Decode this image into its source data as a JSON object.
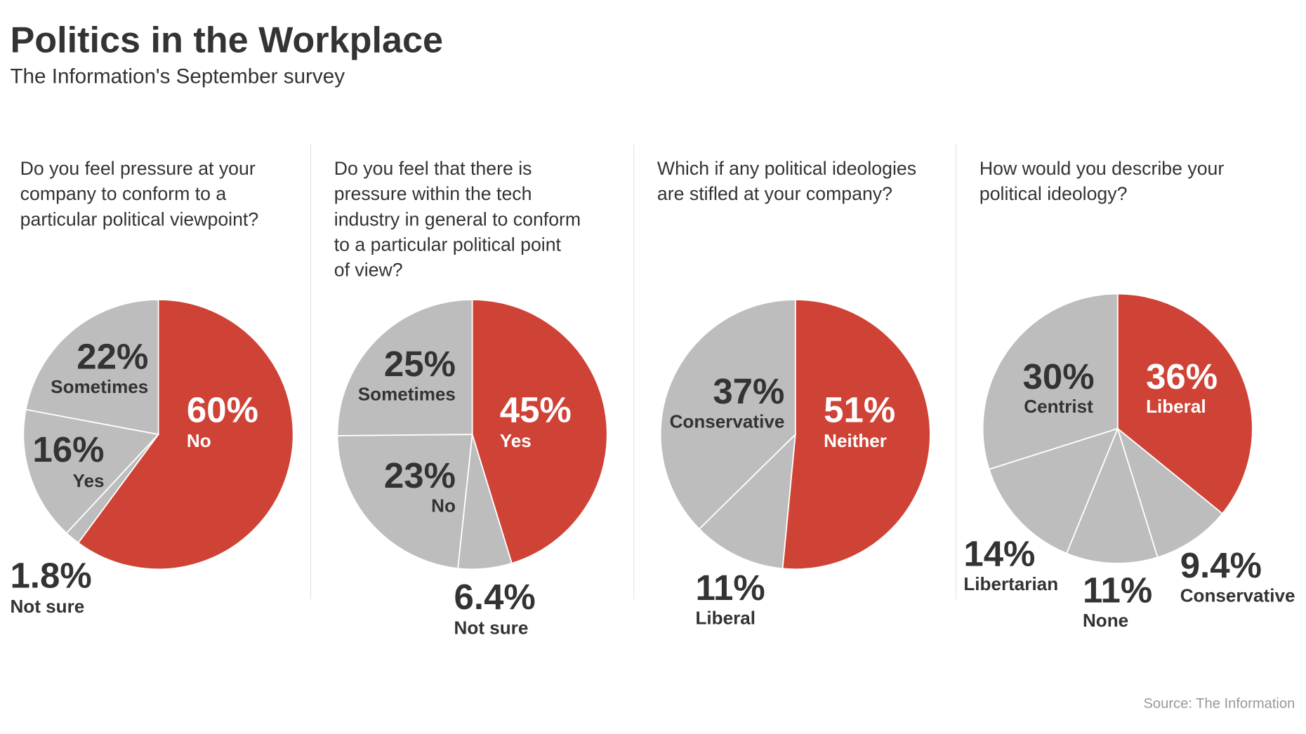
{
  "title": "Politics in the Workplace",
  "subtitle": "The Information's September survey",
  "source": "Source: The Information",
  "colors": {
    "highlight": "#cf4236",
    "other": "#bdbdbd",
    "text": "#333333",
    "separator": "#ffffff"
  },
  "chart_data": [
    {
      "type": "pie",
      "question_lines": [
        "Do you feel pressure at your",
        "company to conform to a",
        "particular political viewpoint?"
      ],
      "slices": [
        {
          "label": "No",
          "value": 60,
          "display": "60%",
          "highlight": true
        },
        {
          "label": "Not sure",
          "value": 1.8,
          "display": "1.8%",
          "highlight": false
        },
        {
          "label": "Yes",
          "value": 16,
          "display": "16%",
          "highlight": false
        },
        {
          "label": "Sometimes",
          "value": 22,
          "display": "22%",
          "highlight": false
        }
      ]
    },
    {
      "type": "pie",
      "question_lines": [
        "Do you feel that there is",
        "pressure within the tech",
        "industry in general to conform",
        "to a particular political point",
        "of view?"
      ],
      "slices": [
        {
          "label": "Yes",
          "value": 45,
          "display": "45%",
          "highlight": true
        },
        {
          "label": "Not sure",
          "value": 6.4,
          "display": "6.4%",
          "highlight": false
        },
        {
          "label": "No",
          "value": 23,
          "display": "23%",
          "highlight": false
        },
        {
          "label": "Sometimes",
          "value": 25,
          "display": "25%",
          "highlight": false
        }
      ]
    },
    {
      "type": "pie",
      "question_lines": [
        "Which if any political ideologies",
        "are stifled at your company?"
      ],
      "slices": [
        {
          "label": "Neither",
          "value": 51,
          "display": "51%",
          "highlight": true
        },
        {
          "label": "Liberal",
          "value": 11,
          "display": "11%",
          "highlight": false
        },
        {
          "label": "Conservative",
          "value": 37,
          "display": "37%",
          "highlight": false
        }
      ]
    },
    {
      "type": "pie",
      "question_lines": [
        "How would you describe your",
        "political ideology?"
      ],
      "slices": [
        {
          "label": "Liberal",
          "value": 36,
          "display": "36%",
          "highlight": true
        },
        {
          "label": "Conservative",
          "value": 9.4,
          "display": "9.4%",
          "highlight": false
        },
        {
          "label": "None",
          "value": 11,
          "display": "11%",
          "highlight": false
        },
        {
          "label": "Libertarian",
          "value": 14,
          "display": "14%",
          "highlight": false
        },
        {
          "label": "Centrist",
          "value": 30,
          "display": "30%",
          "highlight": false
        }
      ]
    }
  ]
}
